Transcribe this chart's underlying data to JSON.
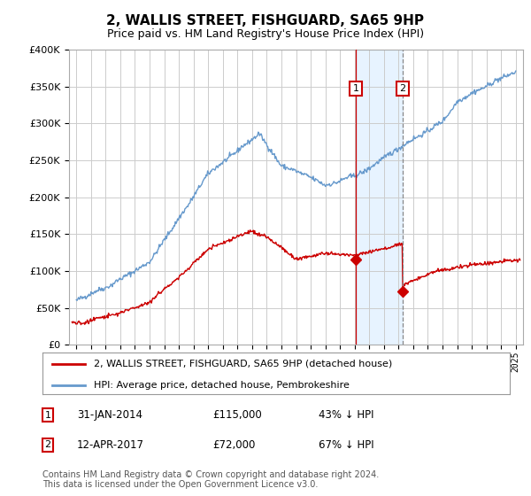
{
  "title": "2, WALLIS STREET, FISHGUARD, SA65 9HP",
  "subtitle": "Price paid vs. HM Land Registry's House Price Index (HPI)",
  "legend_line1": "2, WALLIS STREET, FISHGUARD, SA65 9HP (detached house)",
  "legend_line2": "HPI: Average price, detached house, Pembrokeshire",
  "annotation1_date": "31-JAN-2014",
  "annotation1_price": "£115,000",
  "annotation1_hpi": "43% ↓ HPI",
  "annotation2_date": "12-APR-2017",
  "annotation2_price": "£72,000",
  "annotation2_hpi": "67% ↓ HPI",
  "footnote": "Contains HM Land Registry data © Crown copyright and database right 2024.\nThis data is licensed under the Open Government Licence v3.0.",
  "sale1_year": 2014.08,
  "sale1_price": 115000,
  "sale2_year": 2017.28,
  "sale2_price": 72000,
  "red_line_color": "#cc0000",
  "blue_line_color": "#6699cc",
  "shade_color": "#ddeeff",
  "vline1_color": "#cc0000",
  "vline2_color": "#888888",
  "ylim": [
    0,
    400000
  ],
  "yticks": [
    0,
    50000,
    100000,
    150000,
    200000,
    250000,
    300000,
    350000,
    400000
  ],
  "xlim_start": 1994.5,
  "xlim_end": 2025.5,
  "background_color": "#ffffff",
  "grid_color": "#cccccc"
}
